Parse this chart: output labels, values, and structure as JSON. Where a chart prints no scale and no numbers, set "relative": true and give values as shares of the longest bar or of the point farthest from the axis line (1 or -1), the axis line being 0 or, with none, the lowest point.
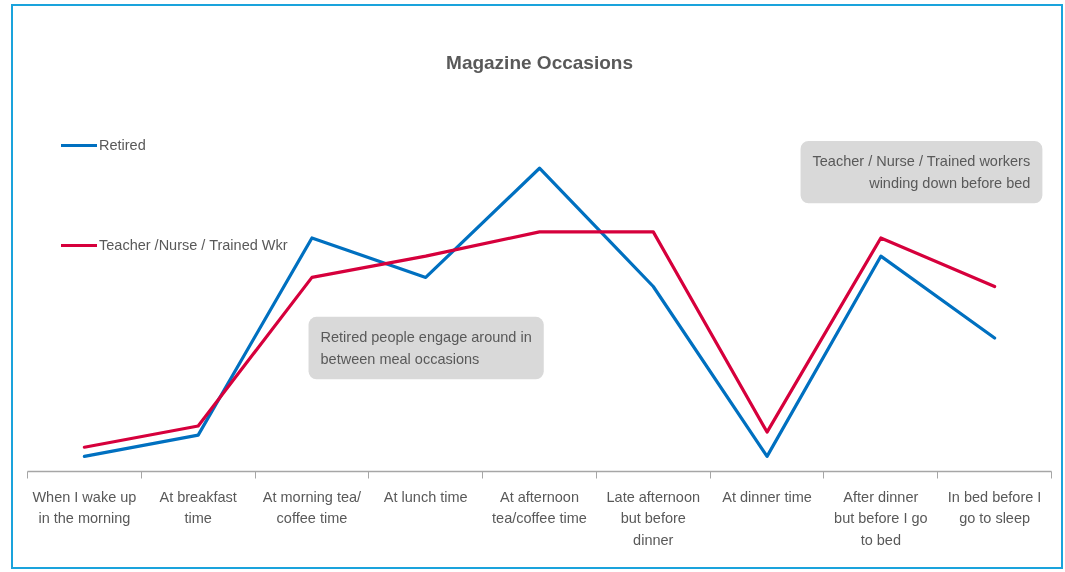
{
  "chart_data": {
    "type": "line",
    "title": "Magazine Occasions",
    "relative": true,
    "categories": [
      "When I wake up in the morning",
      "At breakfast time",
      "At morning tea/ coffee time",
      "At lunch time",
      "At afternoon tea/coffee time",
      "Late afternoon but before dinner",
      "At dinner time",
      "After dinner but before I go to bed",
      "In bed before I go to sleep"
    ],
    "series": [
      {
        "name": "Retired",
        "color": "#0070c0",
        "values": [
          0.05,
          0.12,
          0.77,
          0.64,
          1,
          0.61,
          0.05,
          0.71,
          0.44
        ]
      },
      {
        "name": "Teacher /Nurse / Trained Wkr",
        "color": "#d6003c",
        "values": [
          0.08,
          0.15,
          0.64,
          0.71,
          0.79,
          0.79,
          0.13,
          0.77,
          0.61
        ]
      }
    ],
    "legend": "top left",
    "line_style": "solid",
    "annotations": [
      "Retired people engage around in between meal occasions",
      "Teacher / Nurse / Trained workers winding down before bed"
    ]
  }
}
